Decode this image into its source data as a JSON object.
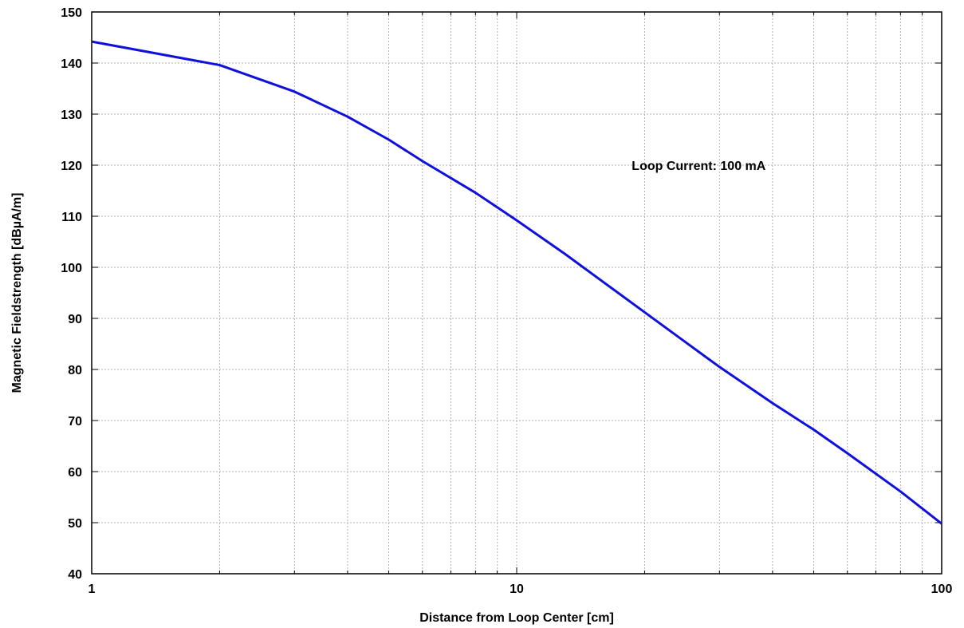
{
  "chart_data": {
    "type": "line",
    "xlabel": "Distance from Loop Center [cm]",
    "ylabel": "Magnetic Fieldstrength [dBµA/m]",
    "xscale": "log",
    "xlim": [
      1,
      100
    ],
    "ylim": [
      40,
      150
    ],
    "grid": true,
    "x_ticks": [
      1,
      10,
      100
    ],
    "x_tick_labels": [
      "1",
      "10",
      "100"
    ],
    "y_ticks": [
      40,
      50,
      60,
      70,
      80,
      90,
      100,
      110,
      120,
      130,
      140,
      150
    ],
    "y_tick_labels": [
      "40",
      "50",
      "60",
      "70",
      "80",
      "90",
      "100",
      "110",
      "120",
      "130",
      "140",
      "150"
    ],
    "annotations": [
      {
        "text": "Loop Current: 100 mA",
        "x": 30,
        "y": 120
      }
    ],
    "line_color": "#1010dd",
    "series": [
      {
        "x": [
          1,
          2,
          3,
          4,
          5,
          6,
          8,
          10,
          13,
          16,
          20,
          25,
          30,
          40,
          50,
          60,
          80,
          100
        ],
        "y": [
          144.2,
          139.6,
          134.4,
          129.5,
          125,
          120.8,
          114.6,
          109.2,
          102.6,
          97.1,
          91.2,
          85.3,
          80.5,
          73.4,
          68.2,
          63.6,
          56.1,
          49.8
        ]
      }
    ]
  }
}
